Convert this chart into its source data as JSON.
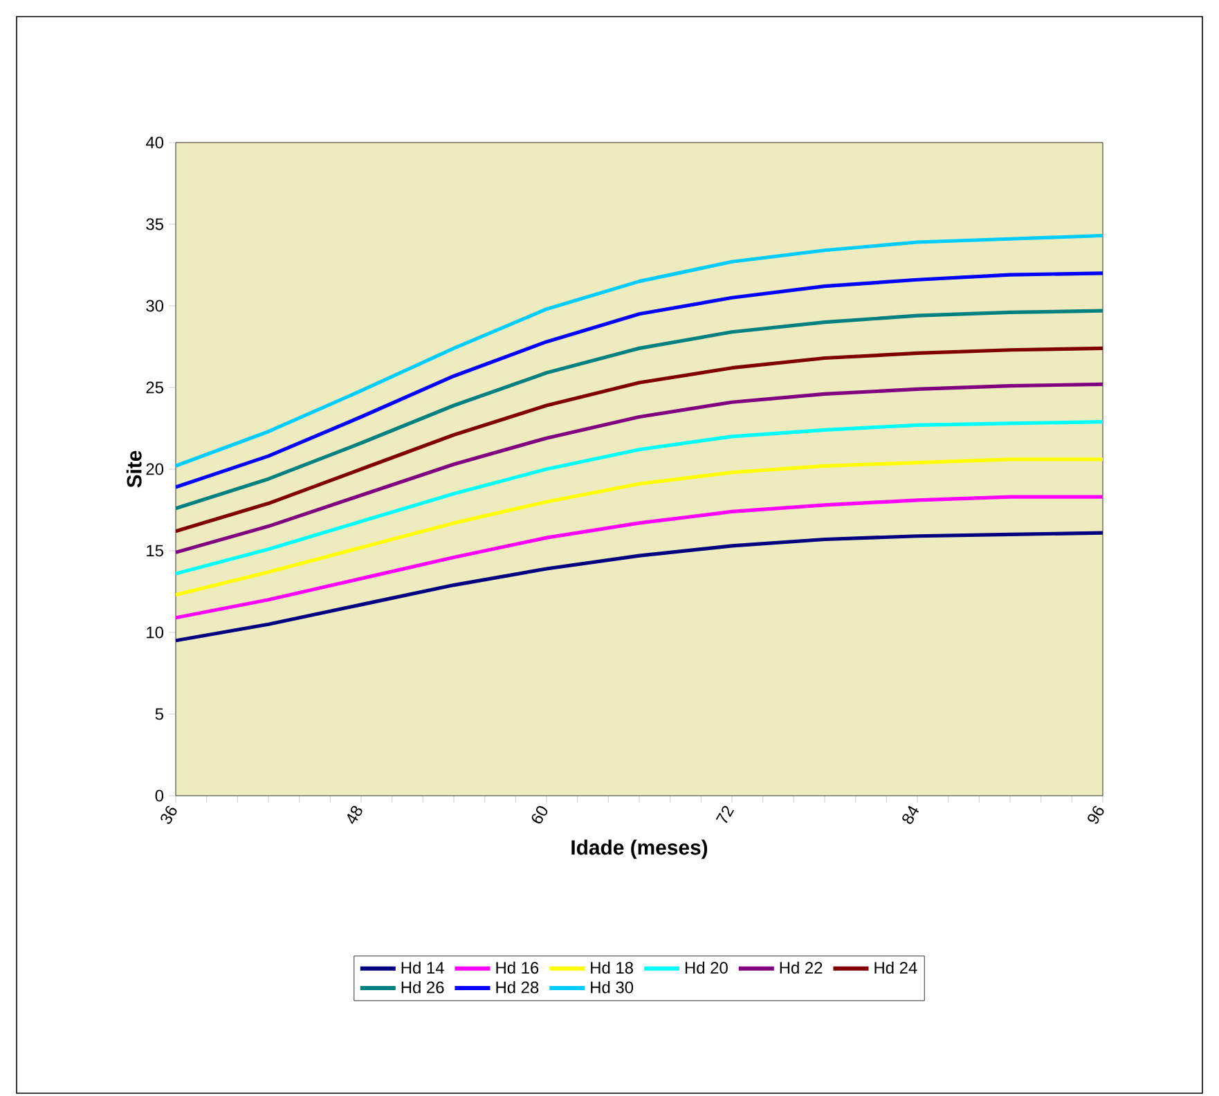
{
  "chart_data": {
    "type": "line",
    "xlabel": "Idade (meses)",
    "ylabel": "Site",
    "x": [
      36,
      42,
      48,
      54,
      60,
      66,
      72,
      78,
      84,
      90,
      96
    ],
    "xlim": [
      36,
      96
    ],
    "xticks": [
      36,
      48,
      60,
      72,
      84,
      96
    ],
    "ylim": [
      0,
      40
    ],
    "yticks": [
      0,
      5,
      10,
      15,
      20,
      25,
      30,
      35,
      40
    ],
    "grid": false,
    "legend": "bottom",
    "marker": "none",
    "line_style": "solid",
    "series": [
      {
        "name": "Hd 14",
        "color": "#000080",
        "values": [
          9.5,
          10.5,
          11.7,
          12.9,
          13.9,
          14.7,
          15.3,
          15.7,
          15.9,
          16.0,
          16.1
        ]
      },
      {
        "name": "Hd 16",
        "color": "#ff00ff",
        "values": [
          10.9,
          12.0,
          13.3,
          14.6,
          15.8,
          16.7,
          17.4,
          17.8,
          18.1,
          18.3,
          18.3
        ]
      },
      {
        "name": "Hd 18",
        "color": "#ffff00",
        "values": [
          12.3,
          13.7,
          15.2,
          16.7,
          18.0,
          19.1,
          19.8,
          20.2,
          20.4,
          20.6,
          20.6
        ]
      },
      {
        "name": "Hd 20",
        "color": "#00ffff",
        "values": [
          13.6,
          15.1,
          16.8,
          18.5,
          20.0,
          21.2,
          22.0,
          22.4,
          22.7,
          22.8,
          22.9
        ]
      },
      {
        "name": "Hd 22",
        "color": "#800080",
        "values": [
          14.9,
          16.5,
          18.4,
          20.3,
          21.9,
          23.2,
          24.1,
          24.6,
          24.9,
          25.1,
          25.2
        ]
      },
      {
        "name": "Hd 24",
        "color": "#800000",
        "values": [
          16.2,
          17.9,
          20.0,
          22.1,
          23.9,
          25.3,
          26.2,
          26.8,
          27.1,
          27.3,
          27.4
        ]
      },
      {
        "name": "Hd 26",
        "color": "#008080",
        "values": [
          17.6,
          19.4,
          21.6,
          23.9,
          25.9,
          27.4,
          28.4,
          29.0,
          29.4,
          29.6,
          29.7
        ]
      },
      {
        "name": "Hd 28",
        "color": "#0000ff",
        "values": [
          18.9,
          20.8,
          23.2,
          25.7,
          27.8,
          29.5,
          30.5,
          31.2,
          31.6,
          31.9,
          32.0
        ]
      },
      {
        "name": "Hd 30",
        "color": "#00ccff",
        "values": [
          20.2,
          22.3,
          24.8,
          27.4,
          29.8,
          31.5,
          32.7,
          33.4,
          33.9,
          34.1,
          34.3
        ]
      }
    ]
  }
}
